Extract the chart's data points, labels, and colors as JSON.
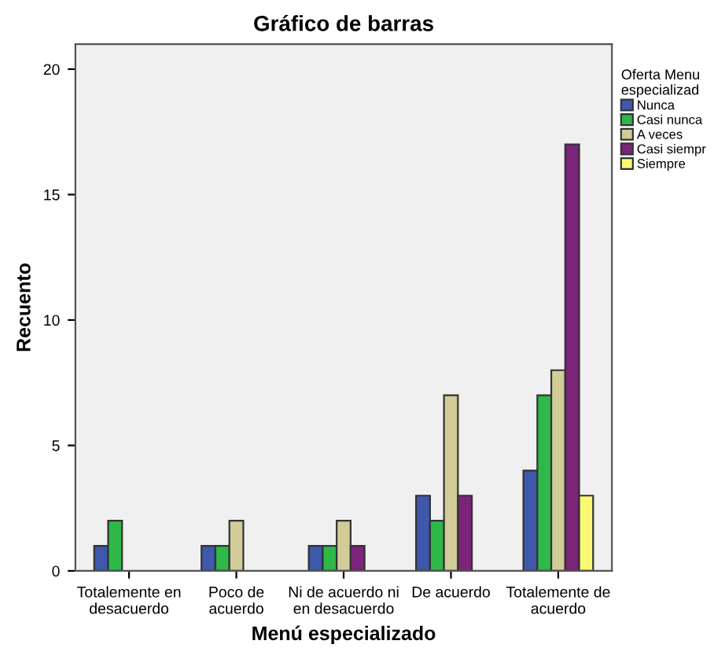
{
  "chart_data": {
    "type": "bar",
    "title": "Gráfico de barras",
    "xlabel": "Menú especializado",
    "ylabel": "Recuento",
    "legend_title": "Oferta Menu\nespecializad",
    "categories": [
      "Totalemente en\ndesacuerdo",
      "Poco de\nacuerdo",
      "Ni de acuerdo ni\nen desacuerdo",
      "De acuerdo",
      "Totalemente de\nacuerdo"
    ],
    "series": [
      {
        "name": "Nunca",
        "color": "#3e58ac",
        "values": [
          1,
          1,
          1,
          3,
          4
        ]
      },
      {
        "name": "Casi nunca",
        "color": "#2eb848",
        "values": [
          2,
          1,
          1,
          2,
          7
        ]
      },
      {
        "name": "A veces",
        "color": "#d2cc98",
        "values": [
          null,
          2,
          2,
          7,
          8
        ]
      },
      {
        "name": "Casi siempr",
        "color": "#7b2479",
        "values": [
          null,
          null,
          1,
          3,
          17
        ]
      },
      {
        "name": "Siempre",
        "color": "#fbf873",
        "values": [
          null,
          null,
          null,
          null,
          3
        ]
      }
    ],
    "ylim": [
      0,
      21
    ],
    "yticks": [
      0,
      5,
      10,
      15,
      20
    ],
    "grid": false,
    "legend": "top right"
  }
}
